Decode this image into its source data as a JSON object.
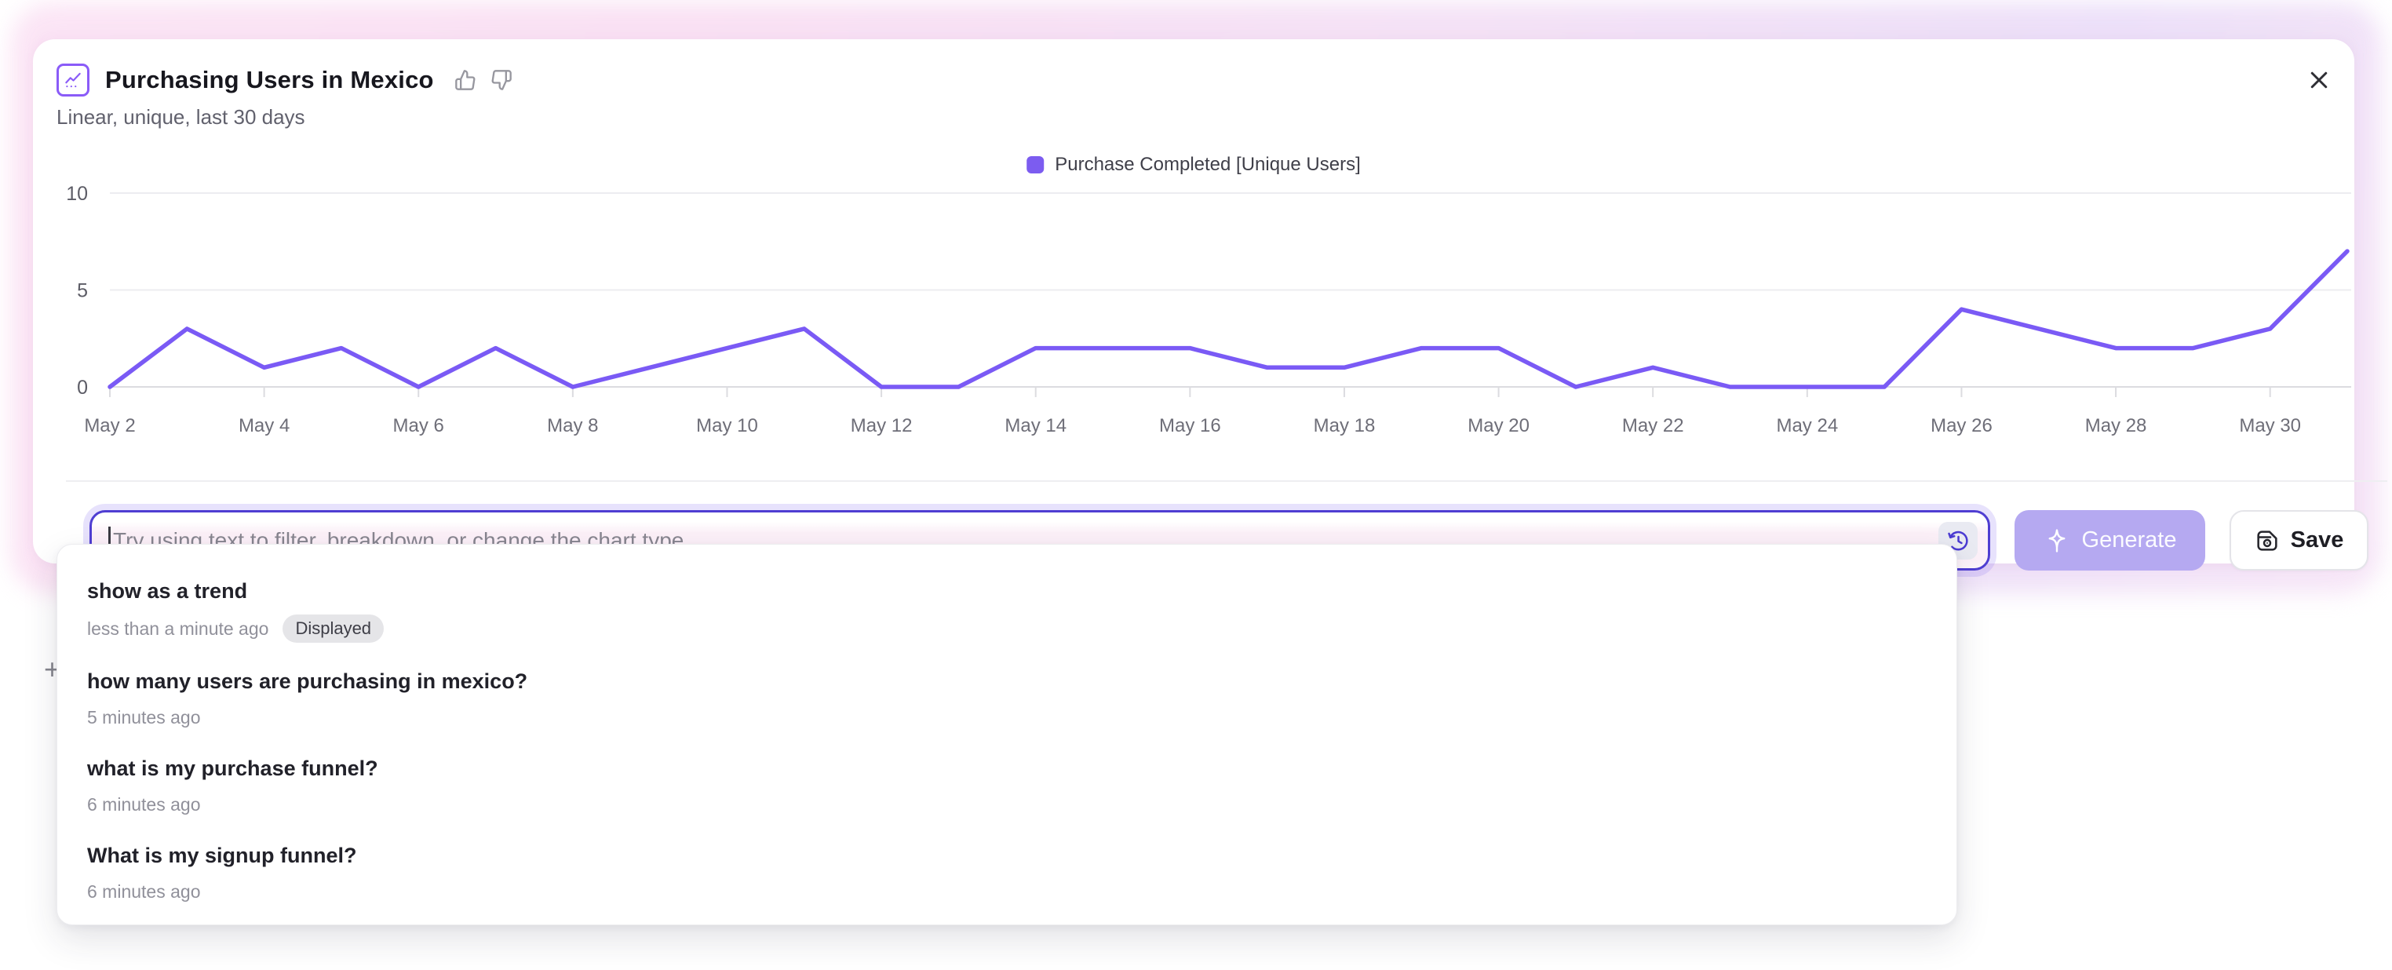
{
  "header": {
    "title": "Purchasing Users in Mexico",
    "subtitle": "Linear, unique, last 30 days"
  },
  "legend": {
    "label": "Purchase Completed [Unique Users]",
    "color": "#7c5cf0"
  },
  "chart_data": {
    "type": "line",
    "title": "Purchasing Users in Mexico",
    "x": [
      "May 2",
      "May 3",
      "May 4",
      "May 5",
      "May 6",
      "May 7",
      "May 8",
      "May 9",
      "May 10",
      "May 11",
      "May 12",
      "May 13",
      "May 14",
      "May 15",
      "May 16",
      "May 17",
      "May 18",
      "May 19",
      "May 20",
      "May 21",
      "May 22",
      "May 23",
      "May 24",
      "May 25",
      "May 26",
      "May 27",
      "May 28",
      "May 29",
      "May 30",
      "May 31"
    ],
    "series": [
      {
        "name": "Purchase Completed [Unique Users]",
        "values": [
          0,
          3,
          1,
          2,
          0,
          2,
          0,
          1,
          2,
          3,
          0,
          0,
          2,
          2,
          2,
          1,
          1,
          2,
          2,
          0,
          1,
          0,
          0,
          0,
          4,
          3,
          2,
          2,
          3,
          7
        ]
      }
    ],
    "xlabel": "",
    "ylabel": "",
    "ylim": [
      0,
      10
    ],
    "yticks": [
      0,
      5,
      10
    ],
    "xtick_step": 2,
    "grid": true,
    "legend_position": "top-center",
    "line_color": "#7a5af5"
  },
  "input": {
    "placeholder": "Try using text to filter, breakdown, or change the chart type",
    "history_icon": "history-clock-icon"
  },
  "buttons": {
    "generate": "Generate",
    "generate_icon": "sparkle-icon",
    "save": "Save",
    "save_icon": "save-disk-icon",
    "close_icon": "close-icon",
    "thumbs": [
      "thumbs-up-icon",
      "thumbs-down-icon"
    ]
  },
  "history": {
    "items": [
      {
        "title": "show as a trend",
        "time": "less than a minute ago",
        "badge": "Displayed"
      },
      {
        "title": "how many users are purchasing in mexico?",
        "time": "5 minutes ago",
        "badge": ""
      },
      {
        "title": "what is my purchase funnel?",
        "time": "6 minutes ago",
        "badge": ""
      },
      {
        "title": "What is my signup funnel?",
        "time": "6 minutes ago",
        "badge": ""
      }
    ]
  },
  "background": {
    "plus_glyph": "+"
  },
  "colors": {
    "accent_purple": "#7a5af5",
    "input_border": "#4f3ed2",
    "generate_bg": "#b5a9f1",
    "badge_bg": "#e5e5e8",
    "glow_pink": "#f9ddf2",
    "glow_lavender": "#eadcf8"
  }
}
